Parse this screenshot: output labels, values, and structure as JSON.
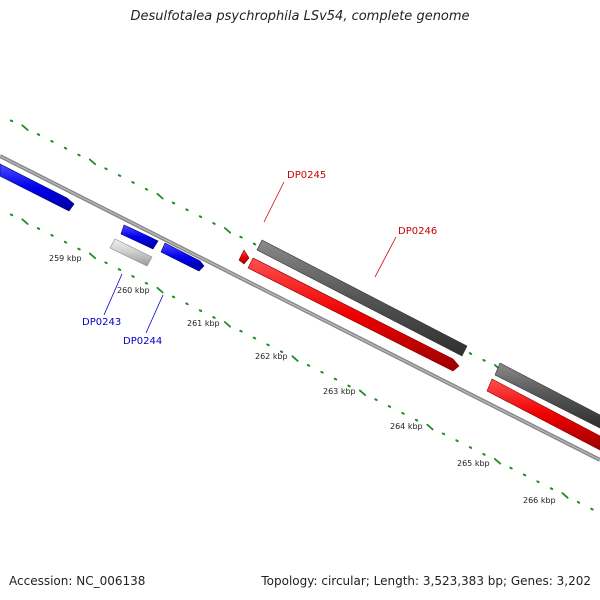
{
  "title": "Desulfotalea psychrophila LSv54, complete genome",
  "footer": {
    "accession": "Accession: NC_006138",
    "summary": "Topology: circular; Length: 3,523,383 bp; Genes: 3,202"
  },
  "colors": {
    "forward_gene": "#0000ee",
    "reverse_gene": "#ee0000",
    "gene_outline": "#555555",
    "pseudo_gene": "#cccccc",
    "backbone": "#888888",
    "ticks": "#228b22"
  },
  "ticks": [
    "259 kbp",
    "260 kbp",
    "261 kbp",
    "262 kbp",
    "263 kbp",
    "264 kbp",
    "265 kbp",
    "266 kbp"
  ],
  "gene_labels": {
    "dp0243": "DP0243",
    "dp0244": "DP0244",
    "dp0245": "DP0245",
    "dp0246": "DP0246"
  }
}
